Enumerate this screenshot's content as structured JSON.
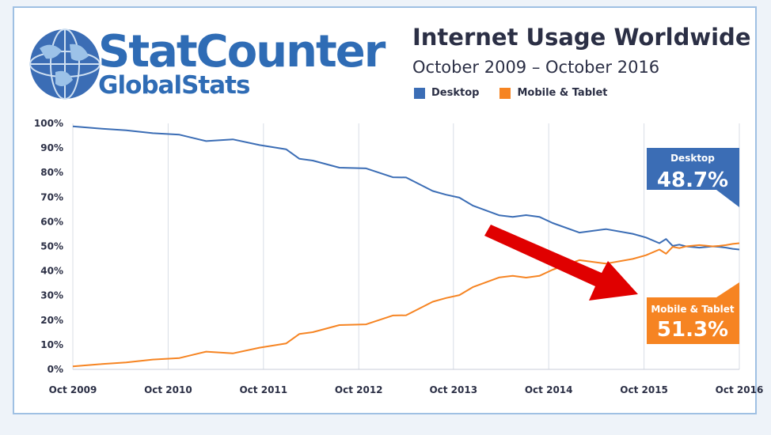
{
  "logo": {
    "line1": "StatCounter",
    "line2": "GlobalStats"
  },
  "colors": {
    "desktop": "#3b6db5",
    "mobile": "#f68422",
    "text": "#2b2f45",
    "arrow": "#e00000"
  },
  "chart_data": {
    "type": "line",
    "title": "Internet Usage Worldwide",
    "subtitle": "October 2009 – October 2016",
    "legend": [
      "Desktop",
      "Mobile & Tablet"
    ],
    "ylim": [
      0,
      100
    ],
    "y_ticks": [
      "0%",
      "10%",
      "20%",
      "30%",
      "40%",
      "50%",
      "60%",
      "70%",
      "80%",
      "90%",
      "100%"
    ],
    "x_ticks": [
      "Oct 2009",
      "Oct 2010",
      "Oct 2011",
      "Oct 2012",
      "Oct 2013",
      "Oct 2014",
      "Oct 2015",
      "Oct 2016"
    ],
    "grid": "vertical",
    "series": [
      {
        "name": "Desktop",
        "x": [
          0,
          4,
          8,
          12,
          16,
          20,
          24,
          28,
          32,
          34,
          36,
          40,
          44,
          48,
          50,
          54,
          56,
          58,
          60,
          64,
          66,
          68,
          70,
          72,
          76,
          80,
          84,
          86,
          88,
          89,
          90,
          91,
          92,
          94,
          96,
          97,
          98,
          99,
          100
        ],
        "values": [
          98.8,
          97.9,
          97.2,
          96.0,
          95.4,
          92.8,
          93.5,
          91.2,
          89.5,
          85.6,
          84.9,
          82.0,
          81.7,
          78.1,
          78.0,
          72.5,
          71.0,
          69.8,
          66.6,
          62.6,
          62.0,
          62.7,
          62.0,
          59.5,
          55.6,
          57.0,
          55.1,
          53.6,
          51.3,
          53.0,
          50.2,
          50.7,
          50.0,
          49.5,
          50.0,
          49.8,
          49.5,
          49.0,
          48.7
        ]
      },
      {
        "name": "Mobile & Tablet",
        "x": [
          0,
          4,
          8,
          12,
          16,
          20,
          24,
          28,
          32,
          34,
          36,
          40,
          44,
          48,
          50,
          54,
          56,
          58,
          60,
          64,
          66,
          68,
          70,
          72,
          76,
          80,
          84,
          86,
          88,
          89,
          90,
          91,
          92,
          94,
          96,
          97,
          98,
          99,
          100
        ],
        "values": [
          1.2,
          2.1,
          2.8,
          4.0,
          4.6,
          7.2,
          6.5,
          8.8,
          10.5,
          14.4,
          15.1,
          18.0,
          18.3,
          21.9,
          22.0,
          27.5,
          29.0,
          30.2,
          33.4,
          37.4,
          38.0,
          37.3,
          38.0,
          40.5,
          44.4,
          43.0,
          44.9,
          46.4,
          48.7,
          47.0,
          49.8,
          49.3,
          50.0,
          50.5,
          50.0,
          50.2,
          50.5,
          51.0,
          51.3
        ]
      }
    ],
    "callouts": [
      {
        "label": "Desktop",
        "value": "48.7%"
      },
      {
        "label": "Mobile & Tablet",
        "value": "51.3%"
      }
    ]
  }
}
